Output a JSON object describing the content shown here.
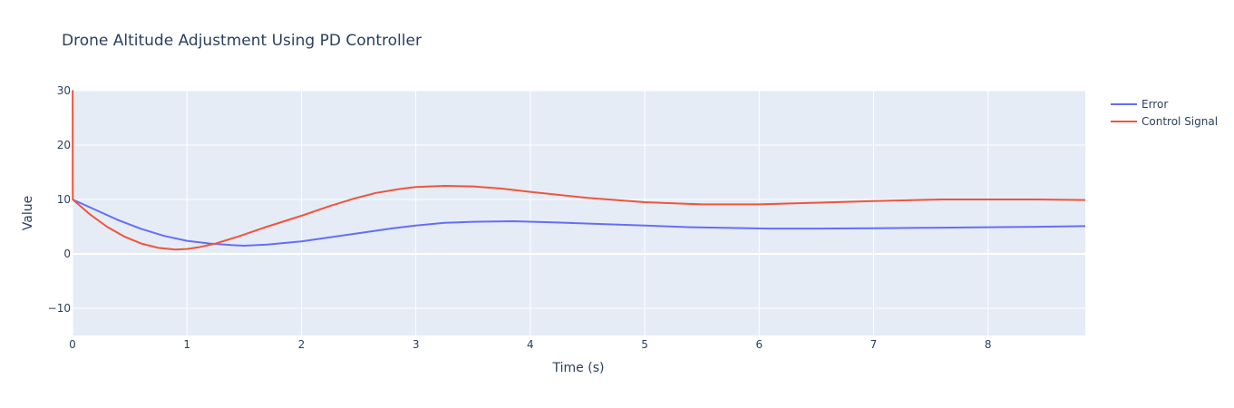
{
  "colors": {
    "plot_bg": "#e5ecf6",
    "grid": "#ffffff",
    "text": "#2a3f5f"
  },
  "chart_data": {
    "type": "line",
    "title": "Drone Altitude Adjustment Using PD Controller",
    "xlabel": "Time (s)",
    "ylabel": "Value",
    "xlim": [
      0,
      8.85
    ],
    "ylim": [
      -15,
      30
    ],
    "x_ticks": [
      0,
      1,
      2,
      3,
      4,
      5,
      6,
      7,
      8
    ],
    "y_ticks": [
      -10,
      0,
      10,
      20,
      30
    ],
    "grid": true,
    "legend_position": "top-right",
    "series": [
      {
        "name": "Error",
        "color": "#636efa",
        "x": [
          0,
          0.2,
          0.4,
          0.6,
          0.8,
          1.0,
          1.2,
          1.4,
          1.5,
          1.7,
          2.0,
          2.2,
          2.4,
          2.6,
          2.8,
          3.0,
          3.25,
          3.5,
          3.85,
          4.2,
          4.6,
          5.0,
          5.4,
          5.8,
          6.1,
          6.5,
          7.0,
          7.5,
          8.0,
          8.5,
          8.85
        ],
        "y": [
          10.0,
          8.1,
          6.2,
          4.6,
          3.3,
          2.4,
          1.9,
          1.6,
          1.5,
          1.7,
          2.3,
          2.9,
          3.5,
          4.1,
          4.7,
          5.2,
          5.7,
          5.9,
          6.0,
          5.8,
          5.5,
          5.2,
          4.9,
          4.75,
          4.65,
          4.65,
          4.7,
          4.8,
          4.9,
          5.0,
          5.1
        ]
      },
      {
        "name": "Control Signal",
        "color": "#ef553b",
        "x": [
          0,
          0.001,
          0.002,
          0.15,
          0.3,
          0.45,
          0.6,
          0.75,
          0.9,
          1.0,
          1.1,
          1.25,
          1.45,
          1.7,
          2.0,
          2.25,
          2.45,
          2.65,
          2.85,
          3.0,
          3.25,
          3.5,
          3.75,
          4.0,
          4.5,
          5.0,
          5.5,
          6.0,
          6.5,
          7.0,
          7.6,
          8.0,
          8.4,
          8.85
        ],
        "y": [
          30,
          30,
          10.0,
          7.3,
          5.0,
          3.2,
          1.9,
          1.1,
          0.8,
          0.9,
          1.2,
          1.9,
          3.2,
          5.0,
          7.0,
          8.8,
          10.1,
          11.2,
          11.9,
          12.3,
          12.5,
          12.4,
          12.0,
          11.4,
          10.3,
          9.5,
          9.1,
          9.1,
          9.4,
          9.7,
          10.0,
          10.0,
          10.0,
          9.9
        ]
      }
    ]
  }
}
